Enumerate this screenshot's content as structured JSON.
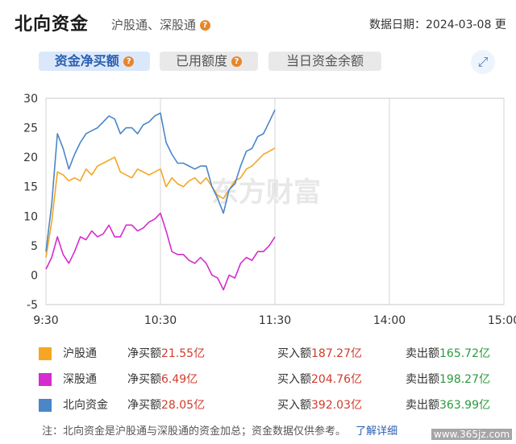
{
  "header": {
    "title": "北向资金",
    "subtitle": "沪股通、深股通",
    "help_icon": "question-icon",
    "date_label": "数据日期：2024-03-08 更"
  },
  "tabs": [
    {
      "label": "资金净买额",
      "active": true
    },
    {
      "label": "已用额度",
      "active": false
    },
    {
      "label": "当日资金余额",
      "active": false
    }
  ],
  "expand_icon": "expand-icon",
  "chart_data": {
    "type": "line",
    "watermark": "东方财富",
    "ylim": [
      -5,
      30
    ],
    "yticks": [
      "30",
      "25",
      "20",
      "15",
      "10",
      "5",
      "0",
      "-5"
    ],
    "xticks": [
      "9:30",
      "10:30",
      "11:30",
      "14:00",
      "15:00"
    ],
    "x": [
      "9:30",
      "9:33",
      "9:36",
      "9:39",
      "9:42",
      "9:45",
      "9:48",
      "9:51",
      "9:54",
      "9:57",
      "10:00",
      "10:03",
      "10:06",
      "10:09",
      "10:12",
      "10:15",
      "10:18",
      "10:21",
      "10:24",
      "10:27",
      "10:30",
      "10:33",
      "10:36",
      "10:39",
      "10:42",
      "10:45",
      "10:48",
      "10:51",
      "10:54",
      "10:57",
      "11:00",
      "11:03",
      "11:06",
      "11:09",
      "11:12",
      "11:15",
      "11:18",
      "11:21",
      "11:24",
      "11:27",
      "11:30"
    ],
    "series": [
      {
        "name": "沪股通",
        "color": "#f5a623",
        "values": [
          3,
          9,
          17.5,
          17,
          16,
          16.5,
          16,
          18,
          17,
          18.5,
          19,
          19.5,
          20,
          17.5,
          17,
          16.5,
          18,
          17.5,
          17,
          17.5,
          18,
          15,
          16.5,
          15.5,
          15,
          16,
          16.5,
          15.5,
          16.5,
          15,
          13.5,
          13,
          14.5,
          16,
          16.5,
          18,
          18.5,
          19.5,
          20.5,
          21,
          21.55
        ]
      },
      {
        "name": "深股通",
        "color": "#d42ccf",
        "values": [
          1,
          3,
          6.5,
          3.5,
          2,
          4,
          6.5,
          6,
          7.5,
          6.5,
          7,
          8.5,
          6.5,
          6.5,
          8.5,
          8.5,
          7.5,
          8,
          9,
          9.5,
          10.5,
          7.5,
          4,
          3.5,
          3.5,
          2.5,
          2,
          3,
          2,
          0,
          -0.5,
          -2.5,
          0,
          -0.5,
          2,
          3,
          2.5,
          4,
          4,
          5,
          6.49
        ]
      },
      {
        "name": "北向资金",
        "color": "#4a86c8",
        "values": [
          4,
          12,
          24,
          21.5,
          18,
          20.5,
          22.5,
          24,
          24.5,
          25,
          26,
          27,
          26.5,
          24,
          25,
          25,
          24,
          25.5,
          26,
          27,
          27.5,
          22.5,
          20.5,
          19,
          19,
          18.5,
          18,
          18.5,
          18.5,
          15,
          13,
          10.5,
          14.5,
          15.5,
          18.5,
          21,
          21.5,
          23.5,
          24,
          26,
          28.05
        ]
      }
    ]
  },
  "summary": [
    {
      "name": "沪股通",
      "color": "#f5a623",
      "net_label": "净买额",
      "net": "21.55亿",
      "buy_label": "买入额",
      "buy": "187.27亿",
      "sell_label": "卖出额",
      "sell": "165.72亿"
    },
    {
      "name": "深股通",
      "color": "#d42ccf",
      "net_label": "净买额",
      "net": "6.49亿",
      "buy_label": "买入额",
      "buy": "204.76亿",
      "sell_label": "卖出额",
      "sell": "198.27亿"
    },
    {
      "name": "北向资金",
      "color": "#4a86c8",
      "net_label": "净买额",
      "net": "28.05亿",
      "buy_label": "买入额",
      "buy": "392.03亿",
      "sell_label": "卖出额",
      "sell": "363.99亿"
    }
  ],
  "note": "注：北向资金是沪股通与深股通的资金加总；资金数据仅供参考。",
  "note_link": "了解详细",
  "site_watermark": "www.365jz.com"
}
